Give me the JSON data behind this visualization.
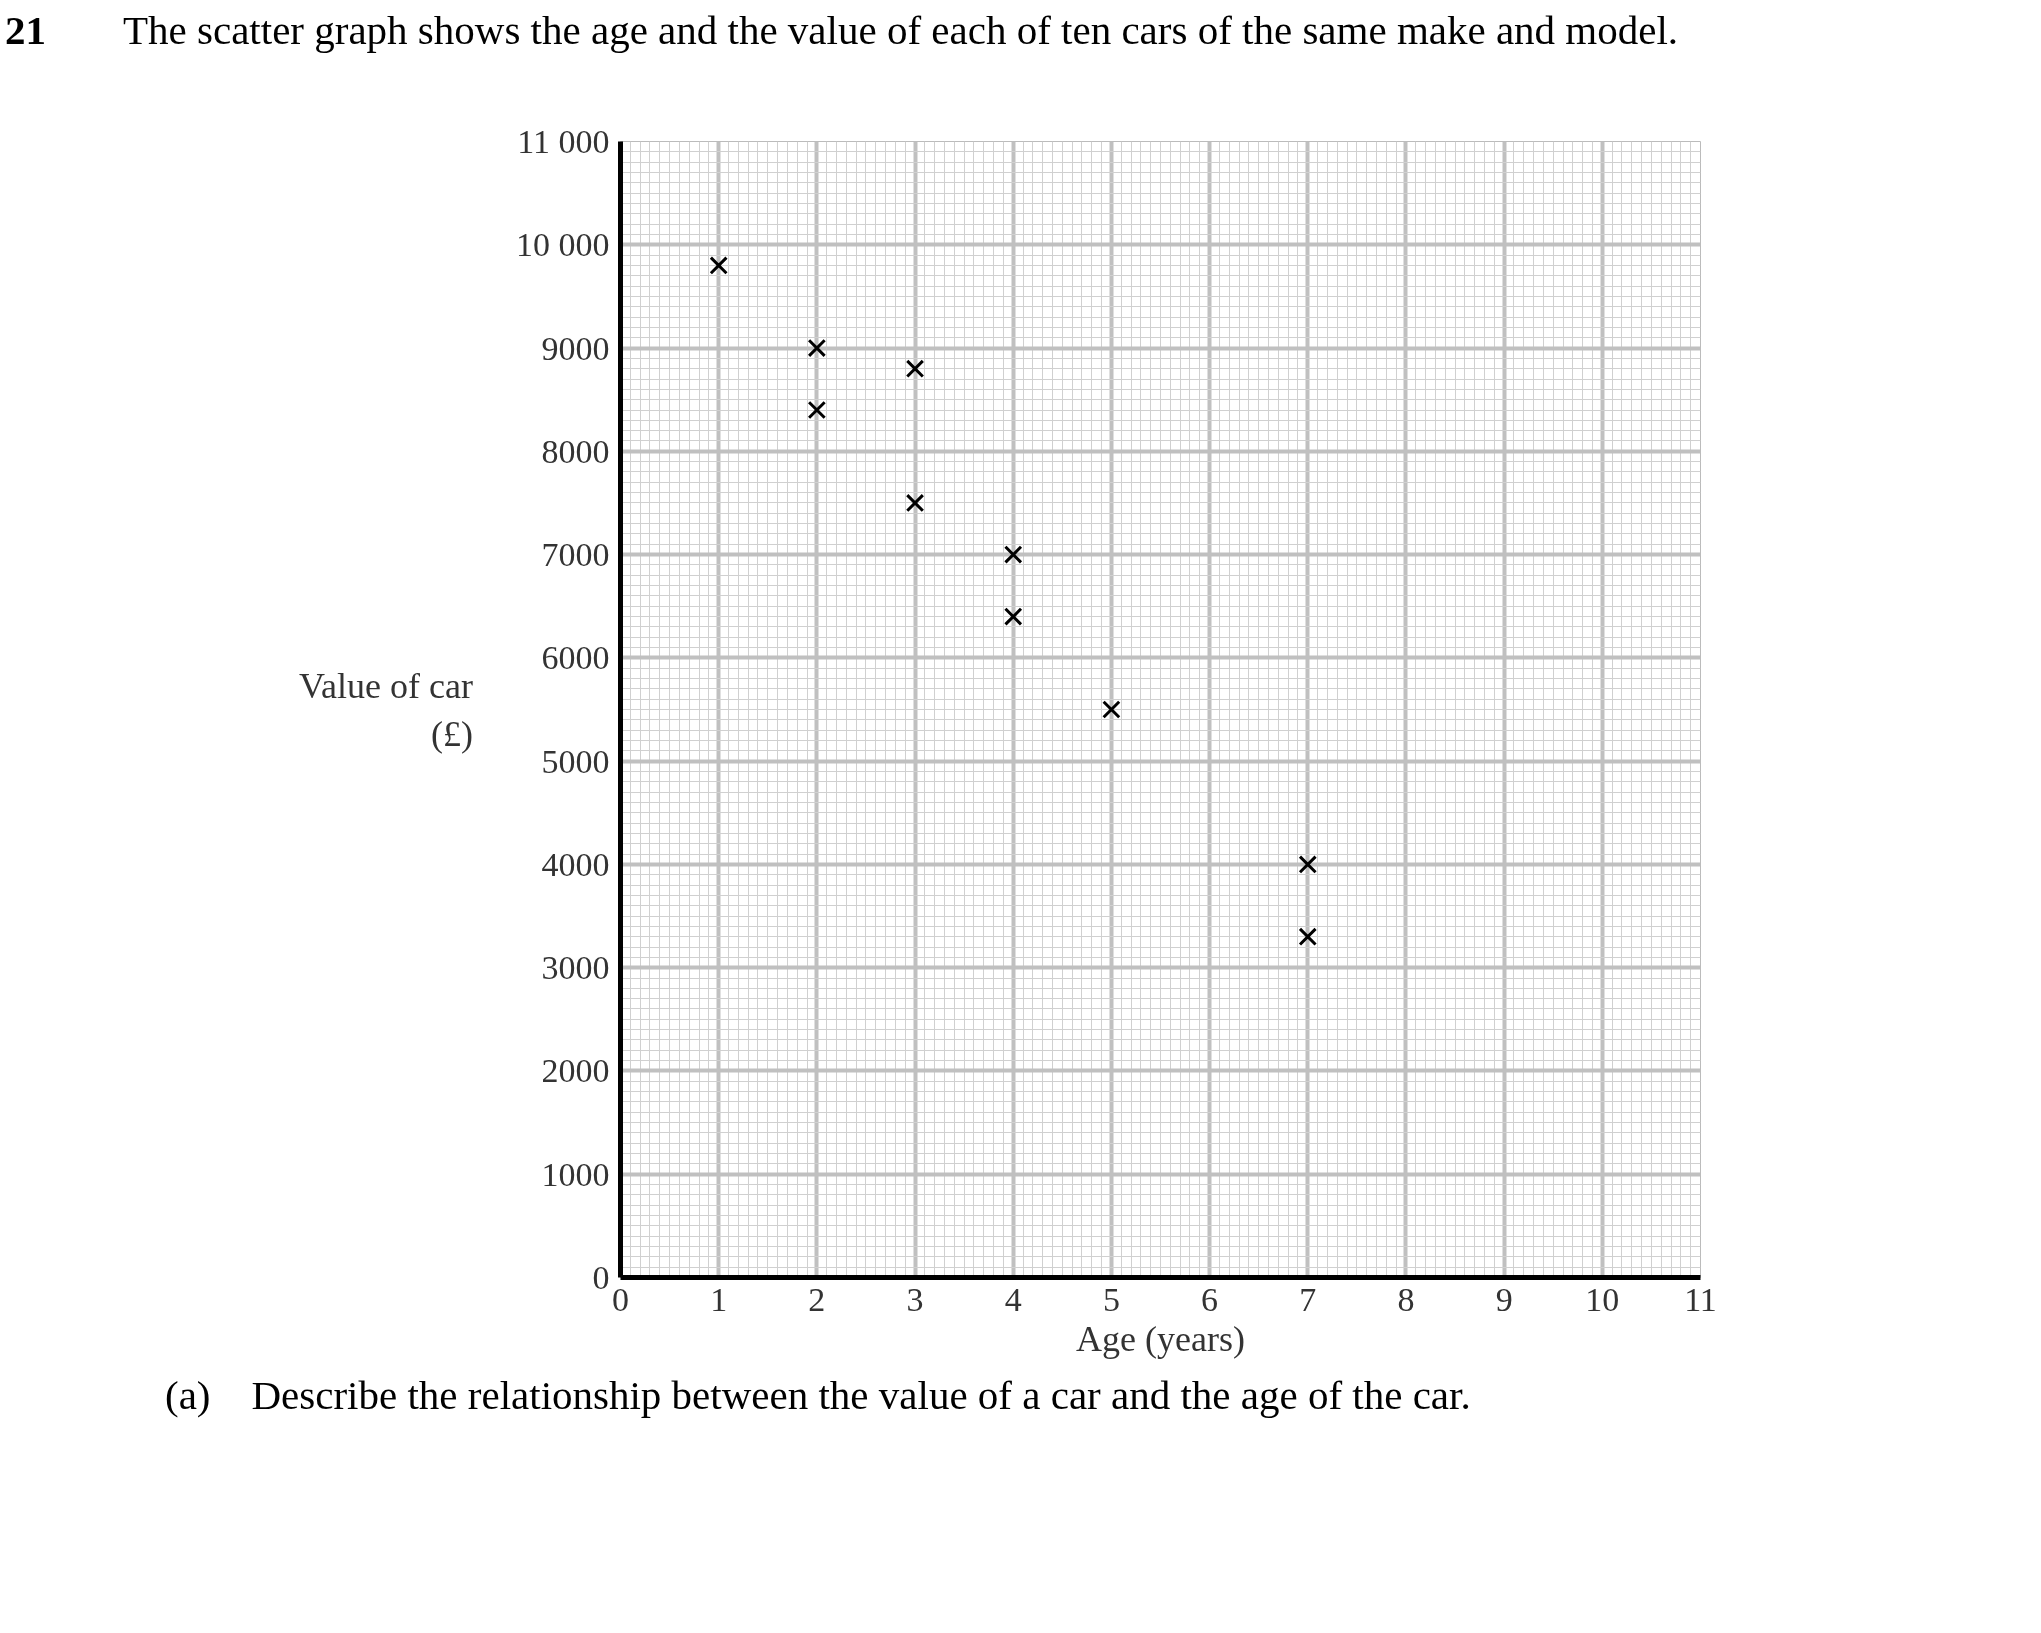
{
  "chart_data": {
    "type": "scatter",
    "title": "The scatter graph shows the age and the value of each of ten cars of the same make and model.",
    "xlabel": "Age (years)",
    "ylabel": "Value of car\n(£)",
    "x": [
      1,
      2,
      2,
      3,
      3,
      4,
      4,
      5,
      7,
      7
    ],
    "series": [
      {
        "color": "#000000",
        "values": [
          9800,
          9000,
          8400,
          8800,
          7500,
          7000,
          6400,
          5500,
          4000,
          3300
        ]
      }
    ],
    "xlim": [
      0,
      11
    ],
    "ylim": [
      0,
      11000
    ],
    "xticks": [
      0,
      1,
      2,
      3,
      4,
      5,
      6,
      7,
      8,
      9,
      10,
      11
    ],
    "yticks": [
      0,
      1000,
      2000,
      3000,
      4000,
      5000,
      6000,
      7000,
      8000,
      9000,
      {
        "value": 10000,
        "label": "10 000"
      },
      {
        "value": 11000,
        "label": "11 000"
      }
    ],
    "grid": true,
    "marker": "cross",
    "annotations": [
      "21",
      "(a)    Describe the relationship between the value of a car and the age of the car."
    ]
  }
}
